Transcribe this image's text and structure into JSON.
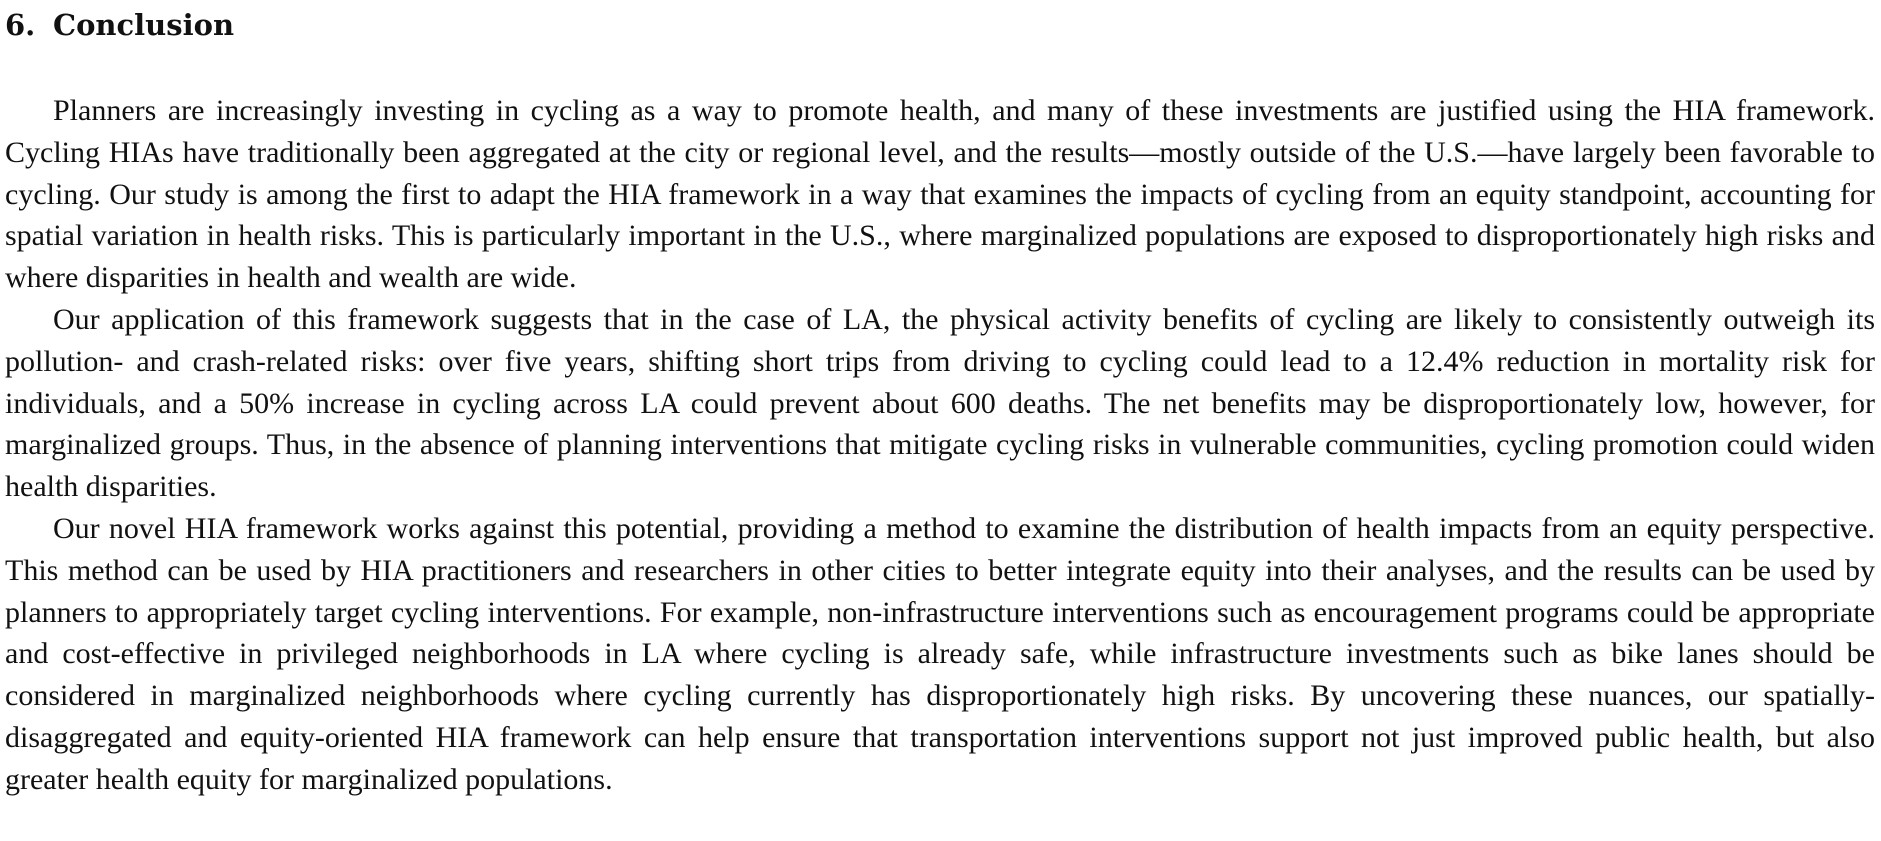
{
  "section": {
    "number": "6.",
    "title": "Conclusion"
  },
  "paragraphs": [
    "Planners are increasingly investing in cycling as a way to promote health, and many of these investments are justified using the HIA framework. Cycling HIAs have traditionally been aggregated at the city or regional level, and the results—mostly outside of the U.S.—have largely been favorable to cycling. Our study is among the first to adapt the HIA framework in a way that examines the impacts of cycling from an equity standpoint, accounting for spatial variation in health risks. This is particularly important in the U.S., where marginalized populations are exposed to disproportionately high risks and where disparities in health and wealth are wide.",
    "Our application of this framework suggests that in the case of LA, the physical activity benefits of cycling are likely to consistently outweigh its pollution- and crash-related risks: over five years, shifting short trips from driving to cycling could lead to a 12.4% reduction in mortality risk for individuals, and a 50% increase in cycling across LA could prevent about 600 deaths. The net benefits may be disproportionately low, however, for marginalized groups. Thus, in the absence of planning interventions that mitigate cycling risks in vulnerable communities, cycling promotion could widen health disparities.",
    "Our novel HIA framework works against this potential, providing a method to examine the distribution of health impacts from an equity perspective. This method can be used by HIA practitioners and researchers in other cities to better integrate equity into their analyses, and the results can be used by planners to appropriately target cycling interventions. For example, non-infrastructure in­terventions such as encouragement programs could be appropriate and cost-effective in privileged neighborhoods in LA where cycling is already safe, while infrastructure investments such as bike lanes should be considered in marginalized neighborhoods where cycling currently has disproportionately high risks. By uncovering these nuances, our spatially-disaggregated and equity-oriented HIA framework can help ensure that transportation interventions support not just improved public health, but also greater health equity for marginalized populations."
  ]
}
